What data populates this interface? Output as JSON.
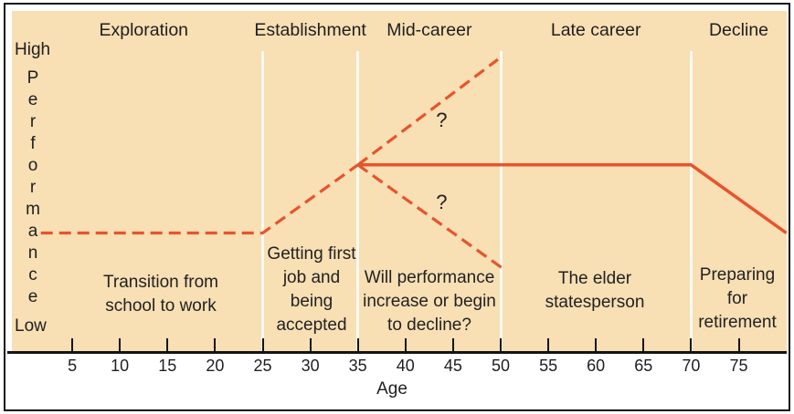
{
  "figure": {
    "y_axis": {
      "high": "High",
      "label": "Performance",
      "low": "Low"
    }
  },
  "chart_data": {
    "type": "line",
    "title": "",
    "xlabel": "Age",
    "ylabel": "Performance (Low to High)",
    "x_range": [
      0,
      80
    ],
    "x_ticks": [
      5,
      10,
      15,
      20,
      25,
      30,
      35,
      40,
      45,
      50,
      55,
      60,
      65,
      70,
      75
    ],
    "y_scale": "qualitative, Low to High",
    "grid": "off",
    "stages": [
      {
        "label": "Exploration",
        "age_span": [
          0,
          25
        ]
      },
      {
        "label": "Establishment",
        "age_span": [
          25,
          35
        ]
      },
      {
        "label": "Mid-career",
        "age_span": [
          35,
          50
        ]
      },
      {
        "label": "Late career",
        "age_span": [
          50,
          70
        ]
      },
      {
        "label": "Decline",
        "age_span": [
          70,
          80
        ]
      }
    ],
    "series": [
      {
        "name": "early-career performance (dashed)",
        "style": "dashed",
        "points": [
          [
            1.7,
            0.35
          ],
          [
            25,
            0.35
          ],
          [
            35,
            0.55
          ]
        ]
      },
      {
        "name": "possible performance increase (dashed)",
        "style": "dashed",
        "points": [
          [
            35,
            0.55
          ],
          [
            49.7,
            0.86
          ]
        ]
      },
      {
        "name": "plateau then decline (solid)",
        "style": "solid",
        "points": [
          [
            35,
            0.55
          ],
          [
            70,
            0.55
          ],
          [
            80,
            0.35
          ]
        ]
      },
      {
        "name": "possible performance decline (dashed)",
        "style": "dashed",
        "points": [
          [
            35,
            0.55
          ],
          [
            50.5,
            0.24
          ]
        ]
      }
    ],
    "annotations": [
      {
        "stage": "Exploration",
        "text": "Transition from\nschool to work"
      },
      {
        "stage": "Establishment",
        "text": "Getting first\njob and\nbeing\naccepted"
      },
      {
        "stage": "Mid-career",
        "text": "Will performance\nincrease or begin\nto decline?"
      },
      {
        "stage": "Late career",
        "text": "The elder\nstatesperson"
      },
      {
        "stage": "Decline",
        "text": "Preparing\nfor\nretirement"
      }
    ],
    "question_marks": [
      {
        "text": "?",
        "age": 43.8,
        "perf": 0.68
      },
      {
        "text": "?",
        "age": 43.8,
        "perf": 0.44
      }
    ]
  },
  "colors": {
    "line": "#e7542c",
    "plot_background": "#f8dfb4",
    "divider": "#fcfaf2",
    "text": "#1f1f1f",
    "axis": "#141414"
  }
}
